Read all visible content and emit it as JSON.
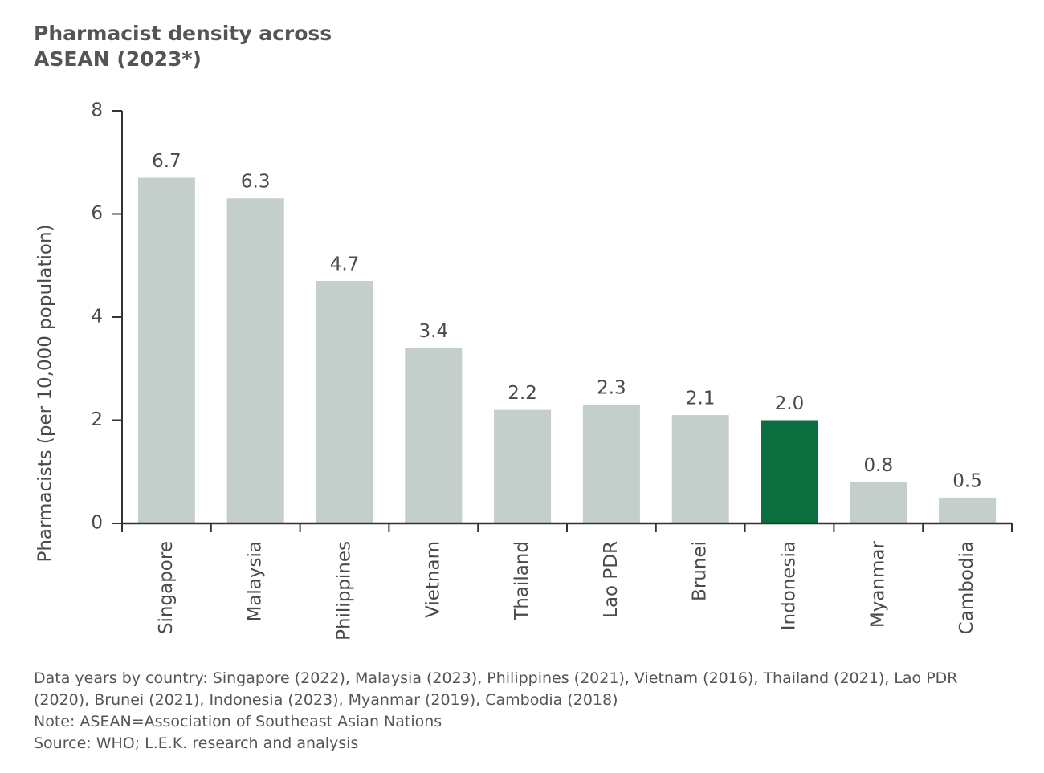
{
  "chart_data": {
    "type": "bar",
    "title": "Pharmacist density across ASEAN (2023*)",
    "y_label": "Pharmacists (per 10,000 population)",
    "categories": [
      "Singapore",
      "Malaysia",
      "Philippines",
      "Vietnam",
      "Thailand",
      "Lao PDR",
      "Brunei",
      "Indonesia",
      "Myanmar",
      "Cambodia"
    ],
    "values": [
      6.7,
      6.3,
      4.7,
      3.4,
      2.2,
      2.3,
      2.1,
      2.0,
      0.8,
      0.5
    ],
    "value_labels": [
      "6.7",
      "6.3",
      "4.7",
      "3.4",
      "2.2",
      "2.3",
      "2.1",
      "2.0",
      "0.8",
      "0.5"
    ],
    "colors": [
      "#c4cecb",
      "#c4cecb",
      "#c4cecb",
      "#c4cecb",
      "#c4cecb",
      "#c4cecb",
      "#c4cecb",
      "#0a6e3f",
      "#c4cecb",
      "#c4cecb"
    ],
    "ylim": [
      0,
      8
    ],
    "yticks": [
      0,
      2,
      4,
      6,
      8
    ],
    "grid": false,
    "notes": [
      "Data years by country: Singapore (2022), Malaysia (2023), Philippines (2021), Vietnam (2016), Thailand (2021), Lao PDR (2020), Brunei (2021), Indonesia (2023), Myanmar (2019), Cambodia (2018)",
      "Note: ASEAN=Association of Southeast Asian Nations",
      "Source: WHO; L.E.K. research and analysis"
    ]
  }
}
